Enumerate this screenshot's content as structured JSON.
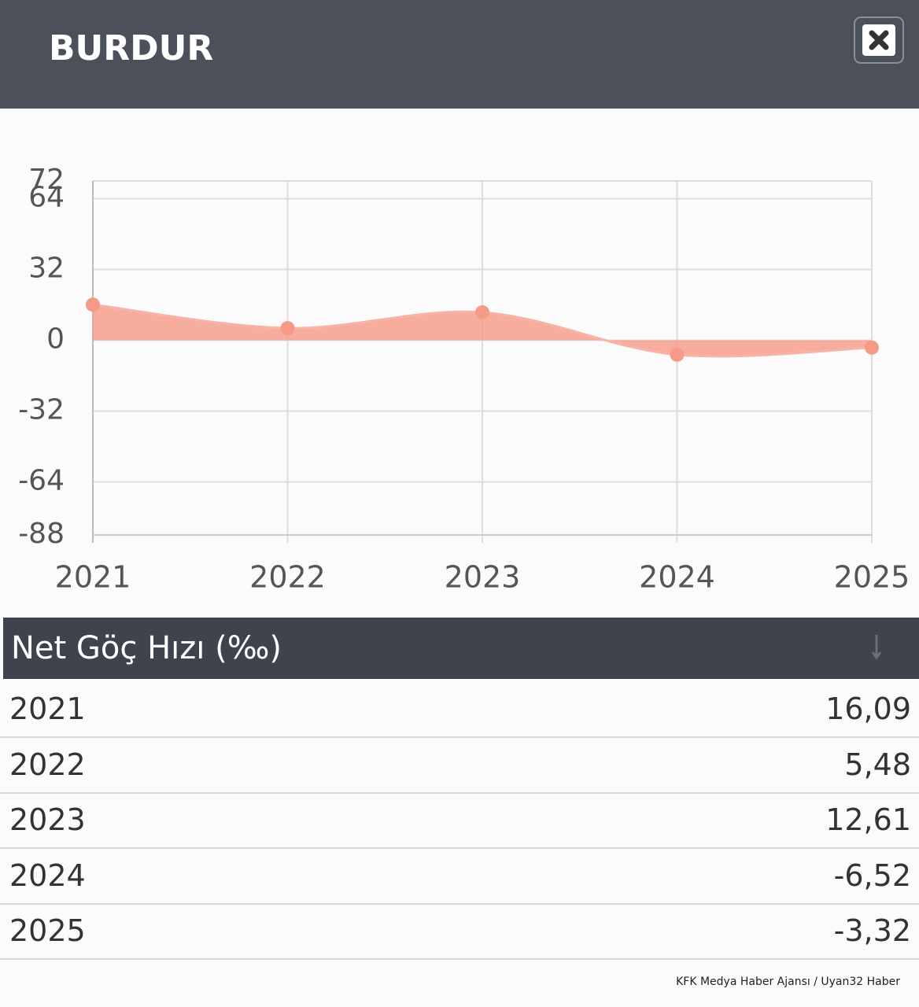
{
  "header": {
    "title": "BURDUR"
  },
  "chart_data": {
    "type": "line",
    "categories": [
      "2021",
      "2022",
      "2023",
      "2024",
      "2025"
    ],
    "series": [
      {
        "color": "#f59a86",
        "values": [
          16.09,
          5.48,
          12.61,
          -6.52,
          -3.32
        ]
      }
    ],
    "ylim": [
      -88,
      72
    ],
    "yticks": [
      72,
      64,
      32,
      0,
      -32,
      -64,
      -88
    ],
    "grid": true,
    "fill": true
  },
  "table": {
    "header": "Net Göç Hızı (‰)",
    "rows": [
      [
        "2021",
        "16,09"
      ],
      [
        "2022",
        "5,48"
      ],
      [
        "2023",
        "12,61"
      ],
      [
        "2024",
        "-6,52"
      ],
      [
        "2025",
        "-3,32"
      ]
    ]
  },
  "footer": {
    "credit": "KFK Medya Haber Ajansı / Uyan32 Haber"
  }
}
